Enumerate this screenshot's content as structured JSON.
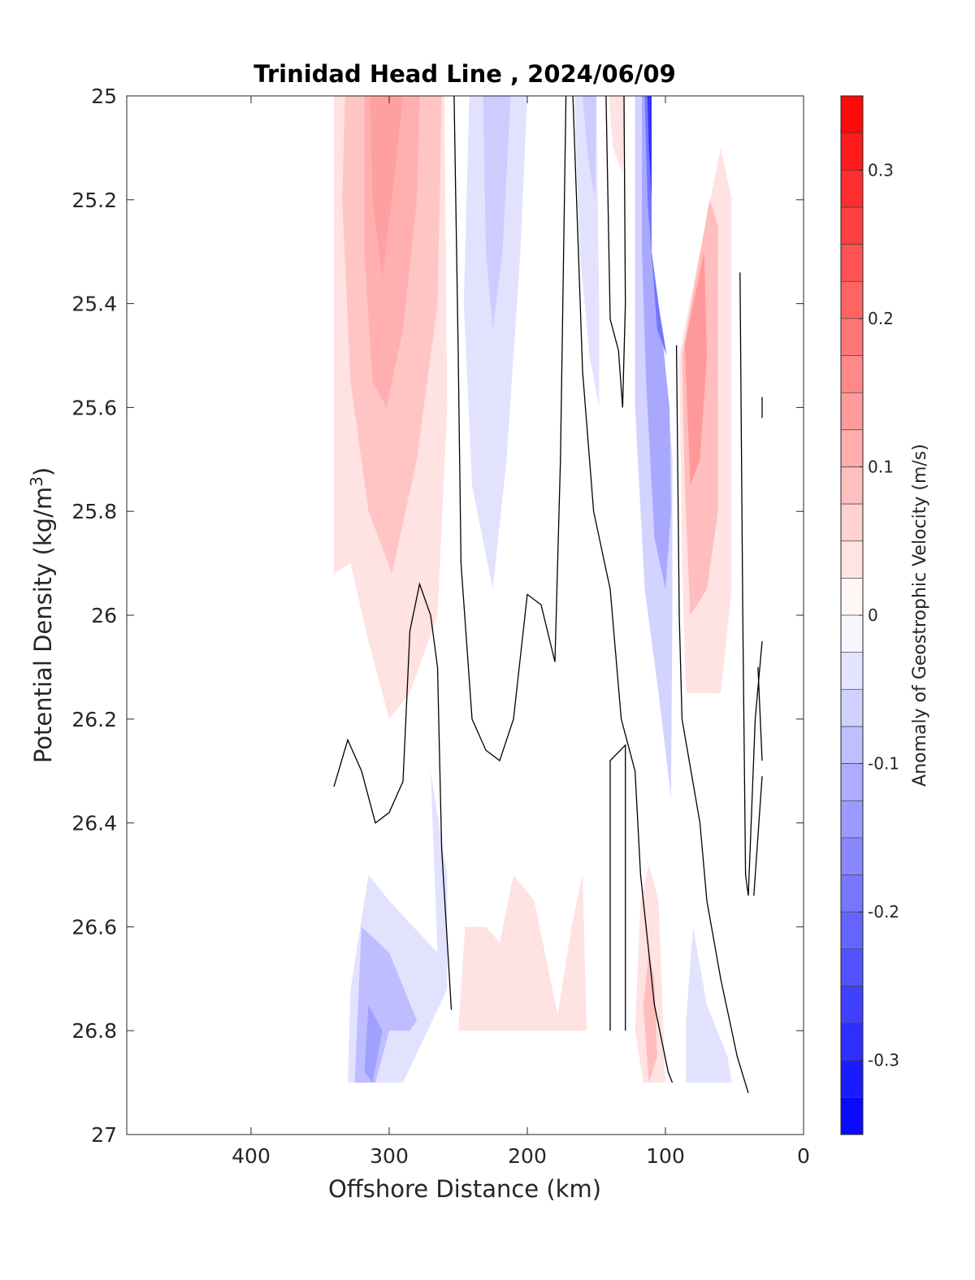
{
  "chart_data": {
    "type": "heatmap",
    "title": "Trinidad Head Line , 2024/06/09",
    "xlabel": "Offshore Distance (km)",
    "ylabel": "Potential Density (kg/m³)",
    "ylabel_base": "Potential Density (kg/m",
    "ylabel_sup": "3",
    "ylabel_end": ")",
    "xlim": [
      490,
      0
    ],
    "ylim": [
      25,
      27
    ],
    "y_reversed": true,
    "xticks": [
      400,
      300,
      200,
      100,
      0
    ],
    "xtick_labels": [
      "400",
      "300",
      "200",
      "100",
      "0"
    ],
    "yticks": [
      25,
      25.2,
      25.4,
      25.6,
      25.8,
      26,
      26.2,
      26.4,
      26.6,
      26.8,
      27
    ],
    "ytick_labels": [
      "25",
      "25.2",
      "25.4",
      "25.6",
      "25.8",
      "26",
      "26.2",
      "26.4",
      "26.6",
      "26.8",
      "27"
    ],
    "colorbar": {
      "label": "Anomaly of Geostrophic Velocity (m/s)",
      "range": [
        -0.35,
        0.35
      ],
      "levels": 28,
      "ticks": [
        0.3,
        0.2,
        0.1,
        0,
        -0.1,
        -0.2,
        -0.3
      ],
      "tick_labels": [
        "0.3",
        "0.2",
        "0.1",
        "0",
        "-0.1",
        "-0.2",
        "-0.3"
      ],
      "colormap": "blue-white-red",
      "min_color": "#0000ff",
      "max_color": "#ff0000"
    },
    "filled_regions": [
      {
        "value": 0.04,
        "points": [
          [
            340,
            25
          ],
          [
            260,
            25
          ],
          [
            258,
            25.6
          ],
          [
            265,
            26.0
          ],
          [
            285,
            26.15
          ],
          [
            300,
            26.2
          ],
          [
            315,
            26.05
          ],
          [
            328,
            25.9
          ],
          [
            340,
            25.92
          ]
        ]
      },
      {
        "value": 0.08,
        "points": [
          [
            332,
            25
          ],
          [
            262,
            25
          ],
          [
            265,
            25.4
          ],
          [
            280,
            25.7
          ],
          [
            298,
            25.92
          ],
          [
            315,
            25.8
          ],
          [
            328,
            25.55
          ],
          [
            334,
            25.2
          ]
        ]
      },
      {
        "value": 0.11,
        "points": [
          [
            318,
            25
          ],
          [
            278,
            25
          ],
          [
            280,
            25.2
          ],
          [
            290,
            25.45
          ],
          [
            302,
            25.6
          ],
          [
            312,
            25.55
          ],
          [
            318,
            25.3
          ]
        ]
      },
      {
        "value": 0.13,
        "points": [
          [
            314,
            25
          ],
          [
            290,
            25
          ],
          [
            298,
            25.2
          ],
          [
            305,
            25.35
          ],
          [
            312,
            25.2
          ]
        ]
      },
      {
        "value": -0.04,
        "points": [
          [
            242,
            25
          ],
          [
            200,
            25
          ],
          [
            205,
            25.3
          ],
          [
            215,
            25.7
          ],
          [
            225,
            25.95
          ],
          [
            240,
            25.75
          ],
          [
            246,
            25.4
          ]
        ]
      },
      {
        "value": -0.07,
        "points": [
          [
            232,
            25
          ],
          [
            212,
            25
          ],
          [
            218,
            25.3
          ],
          [
            225,
            25.45
          ],
          [
            230,
            25.3
          ]
        ]
      },
      {
        "value": 0.04,
        "points": [
          [
            141,
            25
          ],
          [
            129,
            25
          ],
          [
            131,
            25.15
          ],
          [
            138,
            25.1
          ]
        ]
      },
      {
        "value": -0.04,
        "points": [
          [
            166,
            25
          ],
          [
            150,
            25
          ],
          [
            148,
            25.4
          ],
          [
            148,
            25.6
          ],
          [
            155,
            25.5
          ],
          [
            162,
            25.3
          ]
        ]
      },
      {
        "value": -0.07,
        "points": [
          [
            160,
            25
          ],
          [
            150,
            25
          ],
          [
            151,
            25.2
          ],
          [
            156,
            25.12
          ]
        ]
      },
      {
        "value": -0.06,
        "points": [
          [
            122,
            25
          ],
          [
            112,
            25
          ],
          [
            112,
            25.3
          ],
          [
            102,
            25.45
          ],
          [
            95,
            25.7
          ],
          [
            95,
            26.0
          ],
          [
            96,
            26.35
          ],
          [
            105,
            26.15
          ],
          [
            115,
            25.95
          ],
          [
            122,
            25.6
          ]
        ]
      },
      {
        "value": -0.12,
        "points": [
          [
            117,
            25
          ],
          [
            110,
            25
          ],
          [
            110,
            25.3
          ],
          [
            103,
            25.45
          ],
          [
            97,
            25.6
          ],
          [
            96,
            25.8
          ],
          [
            100,
            25.95
          ],
          [
            108,
            25.85
          ],
          [
            114,
            25.55
          ],
          [
            117,
            25.3
          ]
        ]
      },
      {
        "value": -0.19,
        "points": [
          [
            115,
            25
          ],
          [
            110,
            25
          ],
          [
            110,
            25.3
          ],
          [
            104,
            25.42
          ],
          [
            99,
            25.5
          ],
          [
            106,
            25.45
          ],
          [
            113,
            25.2
          ]
        ]
      },
      {
        "value": -0.28,
        "points": [
          [
            113,
            25
          ],
          [
            110,
            25
          ],
          [
            110,
            25.2
          ],
          [
            112,
            25.1
          ]
        ]
      },
      {
        "value": 0.04,
        "points": [
          [
            90,
            25.5
          ],
          [
            60,
            25.1
          ],
          [
            52,
            25.2
          ],
          [
            52,
            25.95
          ],
          [
            60,
            26.15
          ],
          [
            85,
            26.15
          ],
          [
            88,
            25.9
          ]
        ]
      },
      {
        "value": 0.09,
        "points": [
          [
            88,
            25.5
          ],
          [
            68,
            25.2
          ],
          [
            62,
            25.25
          ],
          [
            62,
            25.8
          ],
          [
            70,
            25.95
          ],
          [
            82,
            26.0
          ],
          [
            86,
            25.75
          ]
        ]
      },
      {
        "value": 0.14,
        "points": [
          [
            86,
            25.48
          ],
          [
            72,
            25.3
          ],
          [
            70,
            25.5
          ],
          [
            75,
            25.7
          ],
          [
            82,
            25.75
          ]
        ]
      },
      {
        "value": -0.04,
        "points": [
          [
            315,
            26.5
          ],
          [
            300,
            26.55
          ],
          [
            265,
            26.65
          ],
          [
            270,
            26.3
          ],
          [
            258,
            26.5
          ],
          [
            258,
            26.72
          ],
          [
            290,
            26.9
          ],
          [
            330,
            26.9
          ],
          [
            328,
            26.72
          ]
        ]
      },
      {
        "value": -0.09,
        "points": [
          [
            320,
            26.6
          ],
          [
            300,
            26.65
          ],
          [
            280,
            26.78
          ],
          [
            285,
            26.8
          ],
          [
            300,
            26.8
          ],
          [
            310,
            26.9
          ],
          [
            325,
            26.9
          ]
        ]
      },
      {
        "value": -0.13,
        "points": [
          [
            315,
            26.75
          ],
          [
            305,
            26.8
          ],
          [
            312,
            26.9
          ],
          [
            318,
            26.88
          ]
        ]
      },
      {
        "value": 0.04,
        "points": [
          [
            250,
            26.8
          ],
          [
            245,
            26.6
          ],
          [
            230,
            26.6
          ],
          [
            220,
            26.63
          ],
          [
            210,
            26.5
          ],
          [
            195,
            26.55
          ],
          [
            178,
            26.77
          ],
          [
            168,
            26.6
          ],
          [
            160,
            26.5
          ],
          [
            157,
            26.8
          ]
        ]
      },
      {
        "value": 0.04,
        "points": [
          [
            122,
            26.8
          ],
          [
            118,
            26.55
          ],
          [
            112,
            26.48
          ],
          [
            105,
            26.55
          ],
          [
            100,
            26.9
          ],
          [
            116,
            26.9
          ]
        ]
      },
      {
        "value": 0.09,
        "points": [
          [
            116,
            26.75
          ],
          [
            112,
            26.65
          ],
          [
            108,
            26.7
          ],
          [
            106,
            26.85
          ],
          [
            112,
            26.9
          ]
        ]
      },
      {
        "value": -0.04,
        "points": [
          [
            85,
            26.9
          ],
          [
            85,
            26.78
          ],
          [
            80,
            26.6
          ],
          [
            70,
            26.75
          ],
          [
            55,
            26.85
          ],
          [
            52,
            26.9
          ]
        ]
      }
    ],
    "zero_contours": [
      [
        [
          340,
          26.33
        ],
        [
          330,
          26.24
        ],
        [
          320,
          26.3
        ],
        [
          310,
          26.4
        ],
        [
          300,
          26.38
        ],
        [
          290,
          26.32
        ],
        [
          285,
          26.03
        ],
        [
          278,
          25.94
        ],
        [
          270,
          26.0
        ],
        [
          265,
          26.1
        ],
        [
          262,
          26.45
        ],
        [
          255,
          26.76
        ]
      ],
      [
        [
          253,
          25
        ],
        [
          250,
          25.5
        ],
        [
          248,
          25.9
        ],
        [
          240,
          26.2
        ],
        [
          230,
          26.26
        ],
        [
          220,
          26.28
        ],
        [
          210,
          26.2
        ],
        [
          200,
          25.96
        ],
        [
          190,
          25.98
        ],
        [
          180,
          26.09
        ],
        [
          176,
          25.7
        ],
        [
          172,
          25
        ]
      ],
      [
        [
          167,
          25
        ],
        [
          163,
          25.3
        ],
        [
          160,
          25.53
        ],
        [
          152,
          25.8
        ],
        [
          140,
          25.95
        ],
        [
          132,
          26.2
        ],
        [
          122,
          26.3
        ],
        [
          118,
          26.5
        ],
        [
          108,
          26.75
        ],
        [
          98,
          26.88
        ],
        [
          95,
          26.9
        ]
      ],
      [
        [
          140,
          26.8
        ],
        [
          140,
          26.4
        ],
        [
          140,
          26.28
        ],
        [
          129,
          26.25
        ],
        [
          129,
          26.8
        ]
      ],
      [
        [
          143,
          25
        ],
        [
          140,
          25.43
        ],
        [
          134,
          25.49
        ],
        [
          131,
          25.6
        ],
        [
          129,
          25.4
        ],
        [
          130,
          25
        ]
      ],
      [
        [
          92,
          25.48
        ],
        [
          90,
          26.0
        ],
        [
          88,
          26.2
        ],
        [
          75,
          26.4
        ],
        [
          70,
          26.55
        ],
        [
          60,
          26.7
        ],
        [
          48,
          26.85
        ],
        [
          40,
          26.92
        ]
      ],
      [
        [
          46,
          25.34
        ],
        [
          44,
          26.0
        ],
        [
          42,
          26.5
        ],
        [
          40,
          26.54
        ],
        [
          35,
          26.2
        ],
        [
          30,
          26.05
        ]
      ],
      [
        [
          30,
          26.28
        ],
        [
          33,
          26.1
        ]
      ],
      [
        [
          30,
          26.31
        ],
        [
          36,
          26.54
        ]
      ],
      [
        [
          30,
          25.58
        ],
        [
          30,
          25.62
        ]
      ]
    ]
  }
}
